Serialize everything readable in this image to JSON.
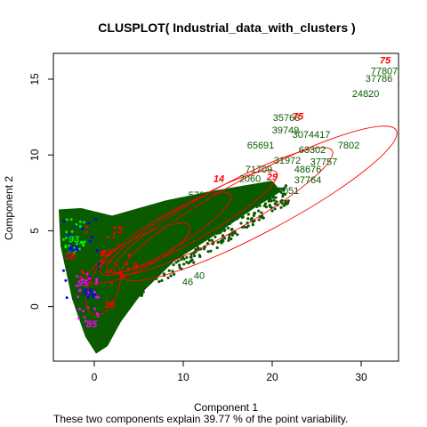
{
  "chart_data": {
    "type": "scatter",
    "title": "CLUSPLOT( Industrial_data_with_clusters )",
    "xlabel": "Component 1",
    "ylabel": "Component 2",
    "subtitle": "These two components explain 39.77 % of the point variability.",
    "xlim": [
      -4.6,
      34.2
    ],
    "ylim": [
      -3.6,
      16.7
    ],
    "x_ticks": [
      0,
      10,
      20,
      30
    ],
    "y_ticks": [
      0,
      5,
      10,
      15
    ],
    "grid": false,
    "legend": "none",
    "colors": {
      "main_cluster": "#0a5a00",
      "highlight_cluster": "#ff0000",
      "cluster_blue": "#0000ff",
      "cluster_magenta": "#ff00ff",
      "cluster_green": "#00ee00",
      "ellipse": "#ff0000"
    },
    "ellipses": [
      {
        "cx": 18.5,
        "cy": 6.8,
        "rx": 17.5,
        "ry": 1.9,
        "angle": 28
      },
      {
        "cx": 14.5,
        "cy": 6.3,
        "rx": 14.0,
        "ry": 1.5,
        "angle": 29
      },
      {
        "cx": 11.0,
        "cy": 5.6,
        "rx": 11.0,
        "ry": 1.2,
        "angle": 30
      },
      {
        "cx": 8.0,
        "cy": 4.8,
        "rx": 8.5,
        "ry": 1.1,
        "angle": 31
      },
      {
        "cx": 5.0,
        "cy": 3.5,
        "rx": 6.5,
        "ry": 1.0,
        "angle": 28
      },
      {
        "cx": 1.0,
        "cy": 1.2,
        "rx": 3.2,
        "ry": 1.0,
        "angle": 70
      }
    ],
    "point_labels": [
      {
        "text": "75",
        "x": 32.7,
        "y": 16.2,
        "color": "#ff0000",
        "italic": true
      },
      {
        "text": "77807",
        "x": 32.6,
        "y": 15.5,
        "color": "#0a5a00"
      },
      {
        "text": "37786",
        "x": 32.0,
        "y": 15.0,
        "color": "#0a5a00"
      },
      {
        "text": "24820",
        "x": 30.5,
        "y": 14.0,
        "color": "#0a5a00"
      },
      {
        "text": "35768",
        "x": 21.6,
        "y": 12.4,
        "color": "#0a5a00"
      },
      {
        "text": "75",
        "x": 22.9,
        "y": 12.5,
        "color": "#ff0000",
        "italic": true
      },
      {
        "text": "39749",
        "x": 21.5,
        "y": 11.6,
        "color": "#0a5a00"
      },
      {
        "text": "3074417",
        "x": 24.4,
        "y": 11.3,
        "color": "#0a5a00"
      },
      {
        "text": "65691",
        "x": 18.7,
        "y": 10.6,
        "color": "#0a5a00"
      },
      {
        "text": "63302",
        "x": 24.5,
        "y": 10.3,
        "color": "#0a5a00"
      },
      {
        "text": "7802",
        "x": 28.6,
        "y": 10.6,
        "color": "#0a5a00"
      },
      {
        "text": "31972",
        "x": 21.7,
        "y": 9.6,
        "color": "#0a5a00"
      },
      {
        "text": "37757",
        "x": 25.8,
        "y": 9.5,
        "color": "#0a5a00"
      },
      {
        "text": "71709",
        "x": 18.5,
        "y": 9.0,
        "color": "#0a5a00"
      },
      {
        "text": "48676",
        "x": 24.0,
        "y": 9.0,
        "color": "#0a5a00"
      },
      {
        "text": "2060",
        "x": 17.5,
        "y": 8.4,
        "color": "#0a5a00"
      },
      {
        "text": "37764",
        "x": 24.0,
        "y": 8.3,
        "color": "#0a5a00"
      },
      {
        "text": "14",
        "x": 14.0,
        "y": 8.4,
        "color": "#ff0000",
        "italic": true
      },
      {
        "text": "29",
        "x": 20.0,
        "y": 8.5,
        "color": "#ff0000",
        "italic": true
      },
      {
        "text": "24051",
        "x": 21.5,
        "y": 7.6,
        "color": "#0a5a00"
      },
      {
        "text": "57996",
        "x": 12.1,
        "y": 7.3,
        "color": "#0a5a00"
      },
      {
        "text": "8523",
        "x": 7.9,
        "y": 5.3,
        "color": "#0a5a00"
      },
      {
        "text": "20593",
        "x": 2.4,
        "y": 4.3,
        "color": "#0a5a00"
      },
      {
        "text": "3",
        "x": 2.9,
        "y": 5.0,
        "color": "#ff0000",
        "italic": true
      },
      {
        "text": "22",
        "x": 1.3,
        "y": 3.5,
        "color": "#ff0000",
        "italic": true
      },
      {
        "text": "8",
        "x": 4.6,
        "y": 2.6,
        "color": "#ff0000",
        "italic": true
      },
      {
        "text": "95",
        "x": -1.3,
        "y": 1.5,
        "color": "#ff00ff",
        "italic": true
      },
      {
        "text": "36",
        "x": 1.7,
        "y": 0.1,
        "color": "#ff0000",
        "italic": true
      },
      {
        "text": "85",
        "x": -0.3,
        "y": -1.2,
        "color": "#ff00ff",
        "italic": true
      },
      {
        "text": "38",
        "x": -2.7,
        "y": 3.3,
        "color": "#ff0000",
        "italic": true
      },
      {
        "text": "93",
        "x": -2.3,
        "y": 4.4,
        "color": "#00ee00",
        "italic": true
      },
      {
        "text": "64",
        "x": -2.3,
        "y": 3.8,
        "color": "#0000ff",
        "italic": true
      },
      {
        "text": "55",
        "x": -0.7,
        "y": 0.9,
        "color": "#0000ff",
        "italic": true
      },
      {
        "text": "40",
        "x": 11.8,
        "y": 2.0,
        "color": "#0a5a00"
      },
      {
        "text": "46",
        "x": 10.5,
        "y": 1.6,
        "color": "#0a5a00"
      }
    ]
  }
}
